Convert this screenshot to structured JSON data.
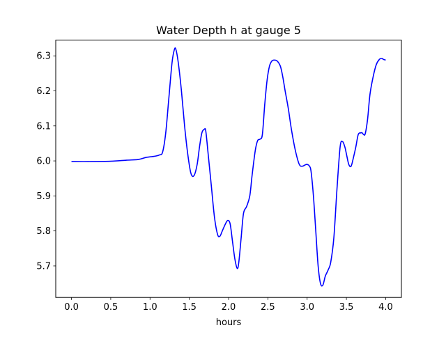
{
  "chart_data": {
    "type": "line",
    "title": "Water Depth h at gauge 5",
    "xlabel": "hours",
    "ylabel": "",
    "xlim": [
      -0.2,
      4.2
    ],
    "ylim": [
      5.61,
      6.345
    ],
    "xticks": [
      0.0,
      0.5,
      1.0,
      1.5,
      2.0,
      2.5,
      3.0,
      3.5,
      4.0
    ],
    "xtick_labels": [
      "0.0",
      "0.5",
      "1.0",
      "1.5",
      "2.0",
      "2.5",
      "3.0",
      "3.5",
      "4.0"
    ],
    "yticks": [
      5.7,
      5.8,
      5.9,
      6.0,
      6.1,
      6.2,
      6.3
    ],
    "ytick_labels": [
      "5.7",
      "5.8",
      "5.9",
      "6.0",
      "6.1",
      "6.2",
      "6.3"
    ],
    "grid": false,
    "series": [
      {
        "color": "#0000ff",
        "x": [
          0.0,
          0.25,
          0.5,
          0.7,
          0.85,
          0.95,
          1.05,
          1.12,
          1.16,
          1.2,
          1.24,
          1.28,
          1.31,
          1.33,
          1.36,
          1.4,
          1.44,
          1.48,
          1.52,
          1.56,
          1.6,
          1.63,
          1.66,
          1.69,
          1.71,
          1.74,
          1.78,
          1.82,
          1.86,
          1.89,
          1.92,
          1.96,
          1.99,
          2.02,
          2.05,
          2.08,
          2.11,
          2.13,
          2.16,
          2.19,
          2.23,
          2.27,
          2.3,
          2.34,
          2.37,
          2.4,
          2.43,
          2.46,
          2.49,
          2.52,
          2.55,
          2.58,
          2.62,
          2.66,
          2.69,
          2.72,
          2.76,
          2.8,
          2.85,
          2.9,
          2.94,
          2.97,
          3.0,
          3.03,
          3.05,
          3.08,
          3.11,
          3.14,
          3.17,
          3.2,
          3.23,
          3.25,
          3.27,
          3.3,
          3.34,
          3.38,
          3.42,
          3.45,
          3.48,
          3.5,
          3.53,
          3.56,
          3.59,
          3.62,
          3.65,
          3.68,
          3.7,
          3.72,
          3.74,
          3.77,
          3.8,
          3.84,
          3.88,
          3.92,
          3.95,
          3.97,
          4.0
        ],
        "y": [
          5.998,
          5.998,
          5.999,
          6.002,
          6.004,
          6.01,
          6.013,
          6.017,
          6.025,
          6.08,
          6.18,
          6.28,
          6.318,
          6.318,
          6.28,
          6.2,
          6.1,
          6.02,
          5.965,
          5.958,
          5.99,
          6.04,
          6.08,
          6.09,
          6.085,
          6.02,
          5.93,
          5.84,
          5.79,
          5.785,
          5.8,
          5.82,
          5.83,
          5.82,
          5.77,
          5.72,
          5.693,
          5.71,
          5.78,
          5.85,
          5.87,
          5.9,
          5.96,
          6.03,
          6.058,
          6.062,
          6.075,
          6.16,
          6.23,
          6.27,
          6.285,
          6.288,
          6.285,
          6.27,
          6.24,
          6.2,
          6.15,
          6.09,
          6.03,
          5.99,
          5.985,
          5.988,
          5.99,
          5.985,
          5.97,
          5.9,
          5.8,
          5.7,
          5.65,
          5.645,
          5.67,
          5.68,
          5.69,
          5.71,
          5.78,
          5.92,
          6.04,
          6.055,
          6.04,
          6.02,
          5.99,
          5.985,
          6.01,
          6.04,
          6.075,
          6.08,
          6.08,
          6.075,
          6.078,
          6.12,
          6.19,
          6.24,
          6.275,
          6.29,
          6.293,
          6.29,
          6.288
        ]
      }
    ]
  }
}
